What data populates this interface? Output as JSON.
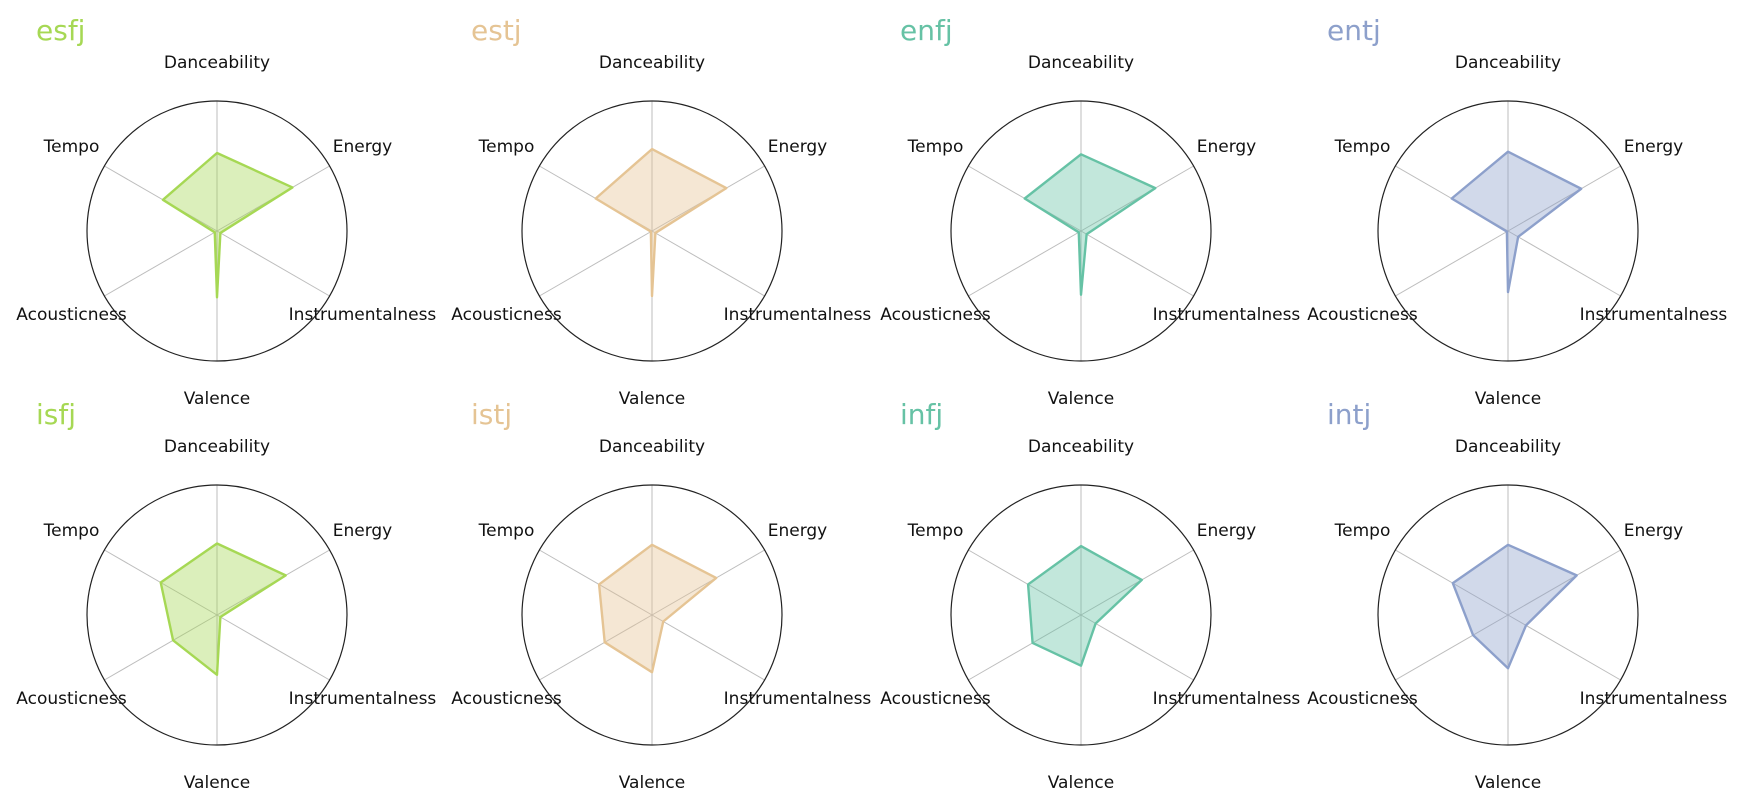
{
  "chart_data": {
    "type": "radar",
    "axes": [
      "Danceability",
      "Energy",
      "Instrumentalness",
      "Valence",
      "Acousticness",
      "Tempo"
    ],
    "grid": true,
    "rlim": [
      0,
      1
    ],
    "charts": [
      {
        "title": "esfj",
        "color": "#a6d854",
        "values": [
          0.6,
          0.67,
          0.03,
          0.51,
          0.02,
          0.48
        ]
      },
      {
        "title": "estj",
        "color": "#e5c494",
        "values": [
          0.63,
          0.66,
          0.03,
          0.5,
          0.01,
          0.5
        ]
      },
      {
        "title": "enfj",
        "color": "#66c2a5",
        "values": [
          0.59,
          0.66,
          0.05,
          0.49,
          0.02,
          0.5
        ]
      },
      {
        "title": "entj",
        "color": "#8da0cb",
        "values": [
          0.61,
          0.65,
          0.09,
          0.47,
          0.01,
          0.5
        ]
      },
      {
        "title": "isfj",
        "color": "#a6d854",
        "values": [
          0.55,
          0.61,
          0.03,
          0.46,
          0.39,
          0.5
        ]
      },
      {
        "title": "istj",
        "color": "#e5c494",
        "values": [
          0.54,
          0.57,
          0.1,
          0.44,
          0.42,
          0.47
        ]
      },
      {
        "title": "infj",
        "color": "#66c2a5",
        "values": [
          0.53,
          0.54,
          0.13,
          0.39,
          0.43,
          0.47
        ]
      },
      {
        "title": "intj",
        "color": "#8da0cb",
        "values": [
          0.54,
          0.61,
          0.16,
          0.41,
          0.31,
          0.49
        ]
      }
    ]
  }
}
